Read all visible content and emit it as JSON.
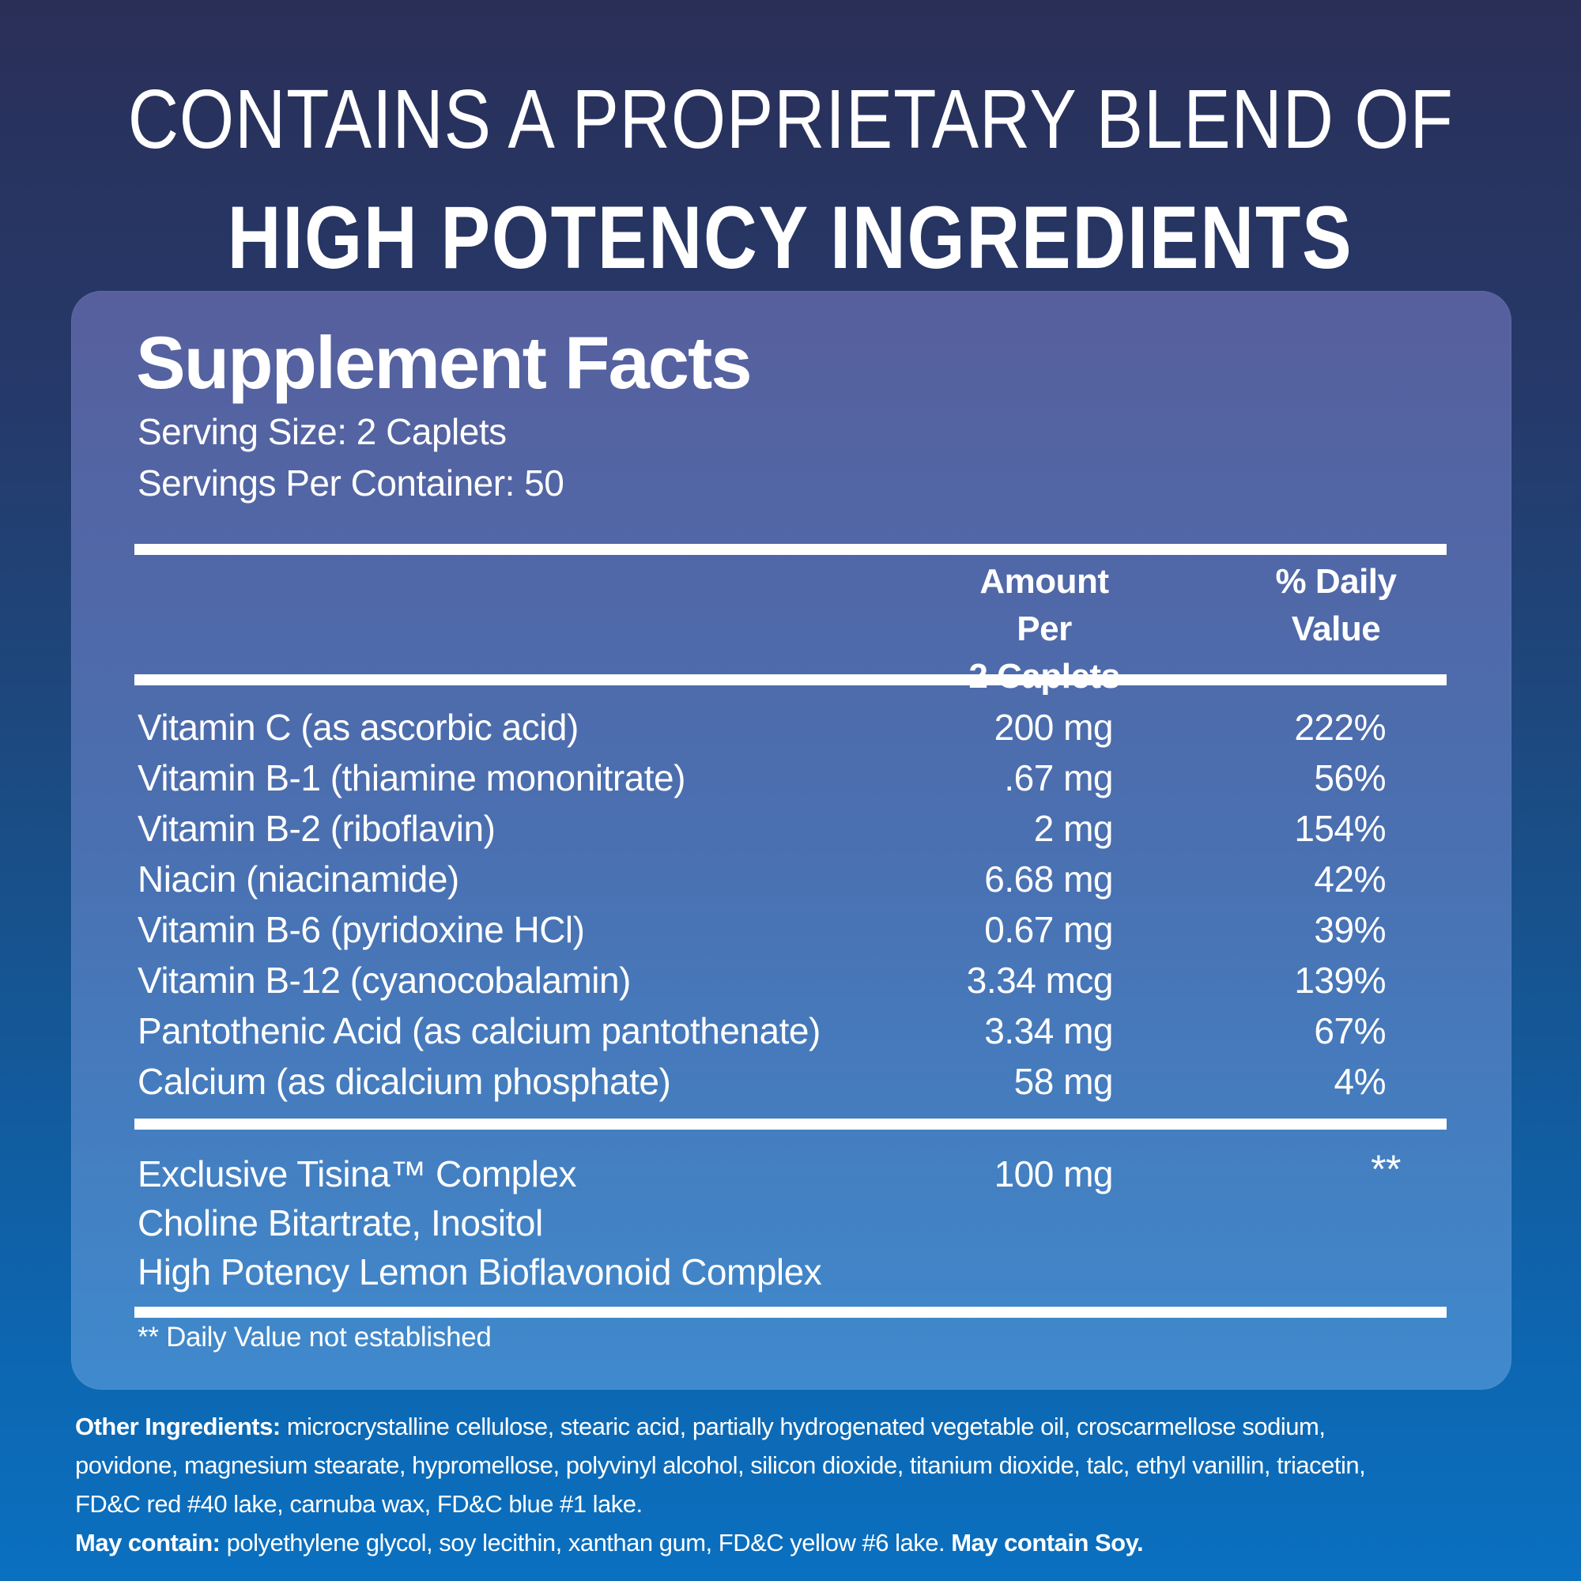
{
  "heading": {
    "line1": "CONTAINS A PROPRIETARY BLEND OF",
    "line2": "HIGH POTENCY INGREDIENTS"
  },
  "panel": {
    "title": "Supplement Facts",
    "serving_size": "Serving Size: 2 Caplets",
    "servings_per_container": "Servings Per Container: 50",
    "columns": {
      "amount_line1": "Amount Per",
      "amount_line2": "2 Caplets",
      "dv_line1": "% Daily",
      "dv_line2": "Value"
    },
    "rows": [
      {
        "name": "Vitamin C (as ascorbic acid)",
        "amount": "200 mg",
        "dv": "222%"
      },
      {
        "name": "Vitamin B-1 (thiamine mononitrate)",
        "amount": ".67 mg",
        "dv": "56%"
      },
      {
        "name": "Vitamin B-2 (riboflavin)",
        "amount": "2 mg",
        "dv": "154%"
      },
      {
        "name": "Niacin (niacinamide)",
        "amount": "6.68 mg",
        "dv": "42%"
      },
      {
        "name": "Vitamin B-6 (pyridoxine HCl)",
        "amount": "0.67 mg",
        "dv": "39%"
      },
      {
        "name": "Vitamin B-12 (cyanocobalamin)",
        "amount": "3.34 mcg",
        "dv": "139%"
      },
      {
        "name": "Pantothenic Acid (as calcium pantothenate)",
        "amount": "3.34 mg",
        "dv": "67%"
      },
      {
        "name": "Calcium (as dicalcium phosphate)",
        "amount": "58 mg",
        "dv": "4%"
      }
    ],
    "blend": {
      "name": "Exclusive Tisina™ Complex",
      "amount": "100 mg",
      "dv": "**",
      "line2": "Choline Bitartrate, Inositol",
      "line3": "High Potency Lemon Bioflavonoid Complex"
    },
    "footnote": "** Daily Value not established"
  },
  "footer": {
    "oi_label": "Other Ingredients:",
    "oi_line1": " microcrystalline cellulose, stearic acid, partially hydrogenated vegetable oil, croscarmellose sodium,",
    "oi_line2": "povidone, magnesium stearate, hypromellose, polyvinyl alcohol, silicon dioxide, titanium dioxide, talc, ethyl vanillin, triacetin,",
    "oi_line3": "FD&C red #40 lake, carnuba wax, FD&C blue #1 lake.",
    "mc_label": "May contain:",
    "mc_text": " polyethylene glycol, soy lecithin, xanthan gum, FD&C yellow #6 lake. ",
    "mc_bold": "May contain Soy."
  },
  "colors": {
    "background_top": "#2a2f58",
    "background_bottom": "#0a70c0",
    "panel_top": "#575f9d",
    "panel_bottom": "#3f8acd",
    "text": "#ffffff",
    "rule": "#ffffff"
  }
}
